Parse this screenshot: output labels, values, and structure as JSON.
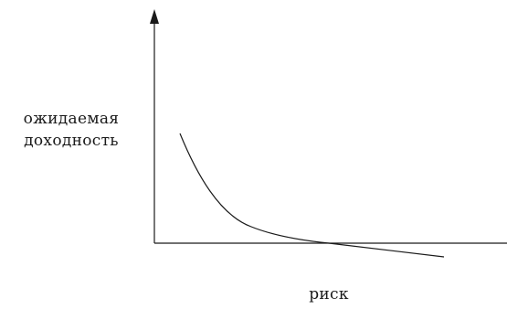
{
  "diagram": {
    "y_axis_label_line1": "ожидаемая",
    "y_axis_label_line2": "доходность",
    "x_axis_label": "риск"
  },
  "colors": {
    "ink": "#1a1a1a",
    "background": "#ffffff"
  }
}
